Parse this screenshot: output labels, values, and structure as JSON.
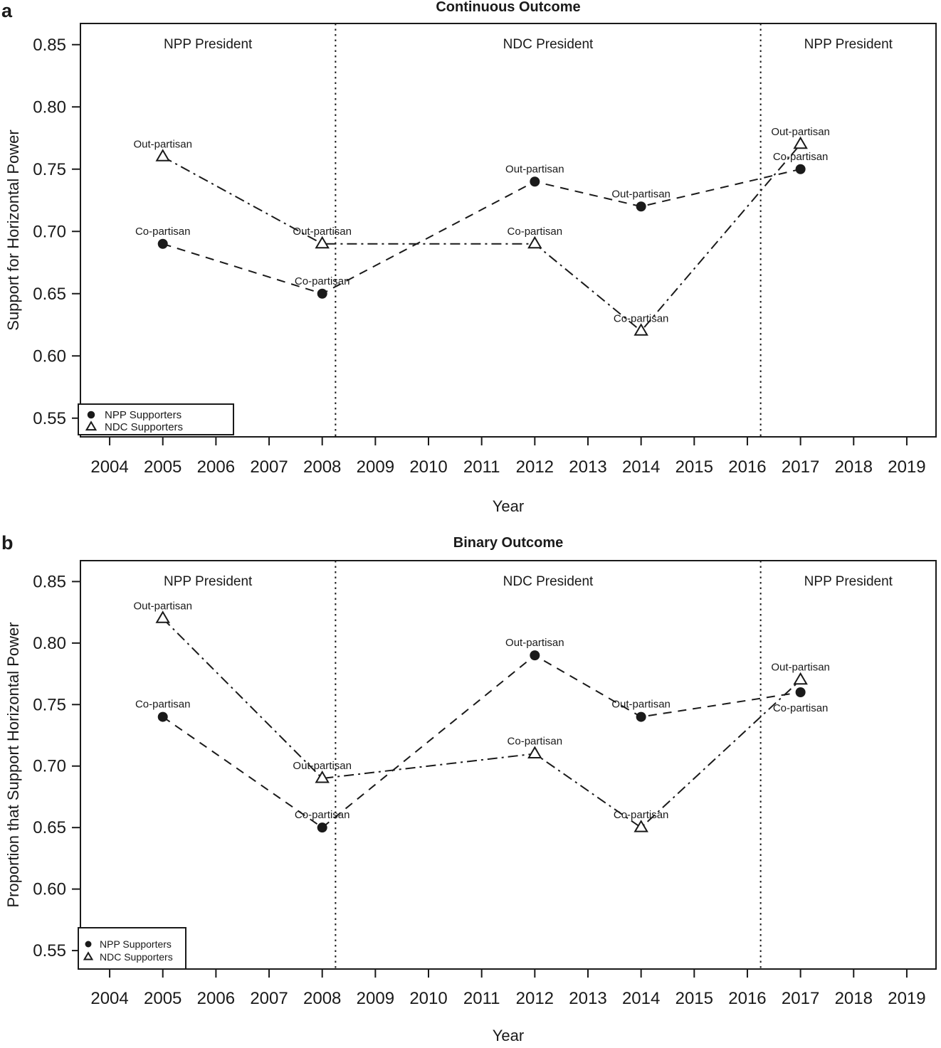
{
  "colors": {
    "foreground": "#1a1a1a",
    "background": "#ffffff"
  },
  "chart_data": [
    {
      "type": "line",
      "panel_label": "a",
      "title": "Continuous Outcome",
      "xlabel": "Year",
      "ylabel": "Support for Horizontal Power",
      "xlim": [
        2003.45,
        2019.55
      ],
      "ylim": [
        0.535,
        0.867
      ],
      "x_ticks": [
        2004,
        2005,
        2006,
        2007,
        2008,
        2009,
        2010,
        2011,
        2012,
        2013,
        2014,
        2015,
        2016,
        2017,
        2018,
        2019
      ],
      "y_ticks": [
        0.55,
        0.6,
        0.65,
        0.7,
        0.75,
        0.8,
        0.85
      ],
      "grid": false,
      "vlines": [
        2008.25,
        2016.25
      ],
      "regions": [
        {
          "label": "NPP President",
          "from": 2003.45,
          "to": 2008.25
        },
        {
          "label": "NDC President",
          "from": 2008.25,
          "to": 2016.25
        },
        {
          "label": "NPP President",
          "from": 2016.25,
          "to": 2019.55
        }
      ],
      "legend": {
        "position": "bottom-left",
        "entries": [
          {
            "marker": "filled-circle",
            "label": "NPP Supporters"
          },
          {
            "marker": "open-triangle",
            "label": "NDC Supporters"
          }
        ]
      },
      "series": [
        {
          "name": "NPP Supporters",
          "marker": "filled-circle",
          "line_style": "dashed",
          "x": [
            2005,
            2008,
            2012,
            2014,
            2017
          ],
          "y": [
            0.69,
            0.65,
            0.74,
            0.72,
            0.75
          ],
          "point_labels": [
            "Co-partisan",
            "Co-partisan",
            "Out-partisan",
            "Out-partisan",
            "Co-partisan"
          ],
          "label_positions": [
            "above",
            "above",
            "above",
            "above",
            "above"
          ]
        },
        {
          "name": "NDC Supporters",
          "marker": "open-triangle",
          "line_style": "dashdot",
          "x": [
            2005,
            2008,
            2012,
            2014,
            2017
          ],
          "y": [
            0.76,
            0.69,
            0.69,
            0.62,
            0.77
          ],
          "point_labels": [
            "Out-partisan",
            "Out-partisan",
            "Co-partisan",
            "Co-partisan",
            "Out-partisan"
          ],
          "label_positions": [
            "above",
            "above",
            "above",
            "above",
            "above"
          ]
        }
      ]
    },
    {
      "type": "line",
      "panel_label": "b",
      "title": "Binary Outcome",
      "xlabel": "Year",
      "ylabel": "Proportion that Support Horizontal Power",
      "xlim": [
        2003.45,
        2019.55
      ],
      "ylim": [
        0.535,
        0.867
      ],
      "x_ticks": [
        2004,
        2005,
        2006,
        2007,
        2008,
        2009,
        2010,
        2011,
        2012,
        2013,
        2014,
        2015,
        2016,
        2017,
        2018,
        2019
      ],
      "y_ticks": [
        0.55,
        0.6,
        0.65,
        0.7,
        0.75,
        0.8,
        0.85
      ],
      "grid": false,
      "vlines": [
        2008.25,
        2016.25
      ],
      "regions": [
        {
          "label": "NPP President",
          "from": 2003.45,
          "to": 2008.25
        },
        {
          "label": "NDC President",
          "from": 2008.25,
          "to": 2016.25
        },
        {
          "label": "NPP President",
          "from": 2016.25,
          "to": 2019.55
        }
      ],
      "legend": {
        "position": "bottom-left",
        "entries": [
          {
            "marker": "filled-circle",
            "label": "NPP Supporters"
          },
          {
            "marker": "open-triangle",
            "label": "NDC Supporters"
          }
        ]
      },
      "series": [
        {
          "name": "NPP Supporters",
          "marker": "filled-circle",
          "line_style": "dashed",
          "x": [
            2005,
            2008,
            2012,
            2014,
            2017
          ],
          "y": [
            0.74,
            0.65,
            0.79,
            0.74,
            0.76
          ],
          "point_labels": [
            "Co-partisan",
            "Co-partisan",
            "Out-partisan",
            "Out-partisan",
            "Co-partisan"
          ],
          "label_positions": [
            "above",
            "above",
            "above",
            "above",
            "below"
          ]
        },
        {
          "name": "NDC Supporters",
          "marker": "open-triangle",
          "line_style": "dashdot",
          "x": [
            2005,
            2008,
            2012,
            2014,
            2017
          ],
          "y": [
            0.82,
            0.69,
            0.71,
            0.65,
            0.77
          ],
          "point_labels": [
            "Out-partisan",
            "Out-partisan",
            "Co-partisan",
            "Co-partisan",
            "Out-partisan"
          ],
          "label_positions": [
            "above",
            "above",
            "above",
            "above",
            "above"
          ]
        }
      ]
    }
  ]
}
